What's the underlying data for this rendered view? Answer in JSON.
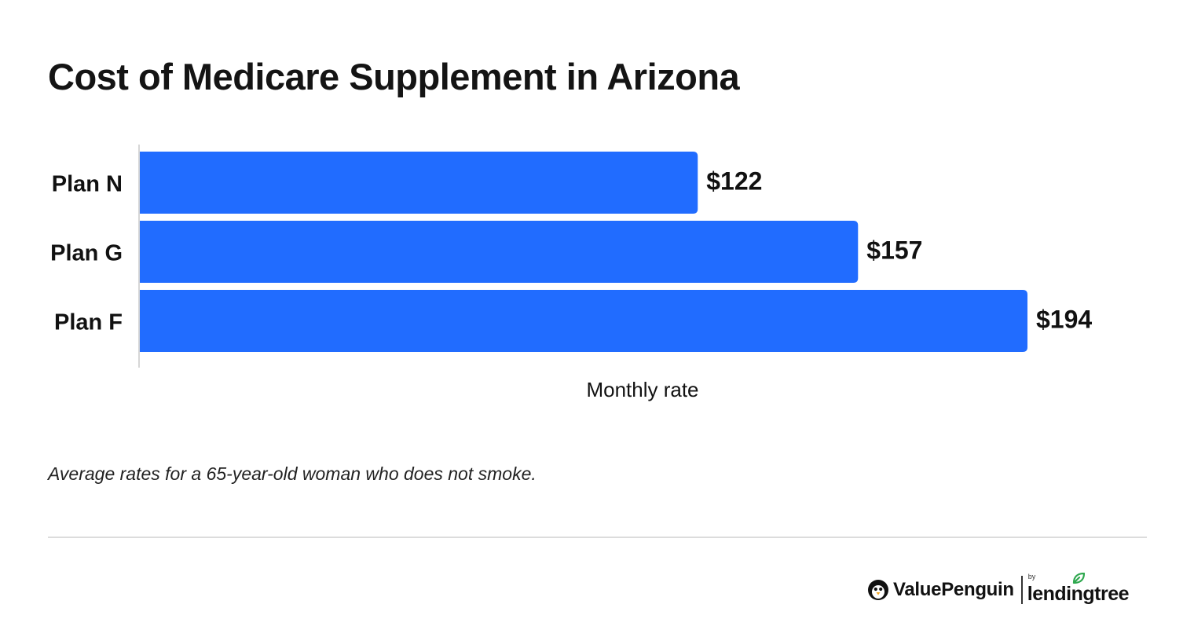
{
  "chart_data": {
    "type": "bar",
    "orientation": "horizontal",
    "title": "Cost of Medicare Supplement in Arizona",
    "categories": [
      "Plan N",
      "Plan G",
      "Plan F"
    ],
    "values": [
      122,
      157,
      194
    ],
    "data_labels": [
      "$122",
      "$157",
      "$194"
    ],
    "xlabel": "Monthly rate",
    "ylabel": "",
    "xlim": [
      0,
      194
    ],
    "grid": false,
    "legend": "none",
    "bar_color": "#216cff"
  },
  "footnote": "Average rates for a 65-year-old woman who does not smoke.",
  "brand": {
    "primary": "ValuePenguin",
    "by": "by",
    "secondary": "lendingtree",
    "icon": "penguin-icon",
    "leaf_icon": "leaf-icon",
    "leaf_color": "#2fa84f"
  }
}
